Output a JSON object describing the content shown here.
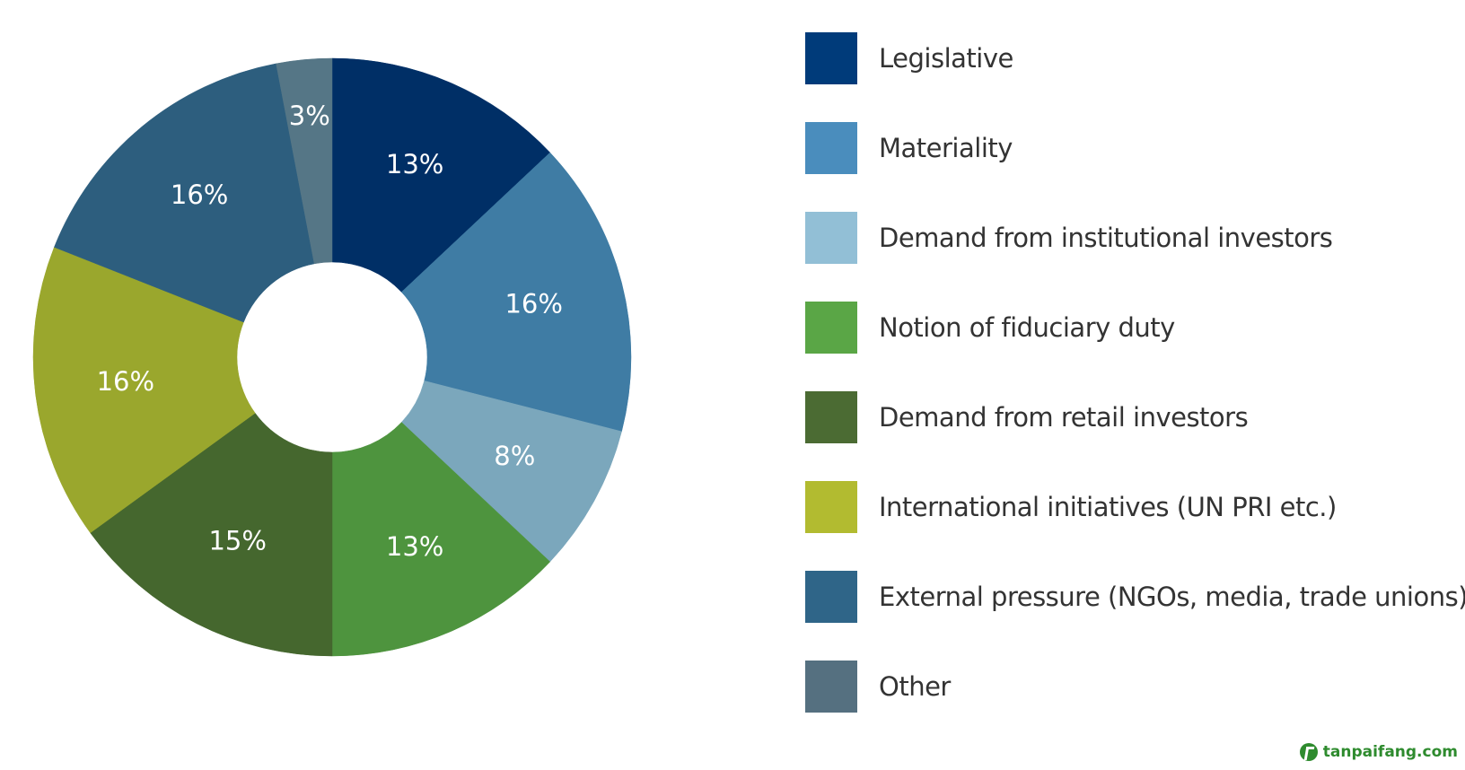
{
  "chart_data": {
    "type": "pie",
    "title": "",
    "categories": [
      "Legislative",
      "Materiality",
      "Demand from institutional investors",
      "Notion of fiduciary duty",
      "Demand from retail investors",
      "International initiatives (UN PRI etc.)",
      "External pressure (NGOs, media, trade unions)",
      "Other"
    ],
    "values": [
      13,
      16,
      8,
      13,
      15,
      16,
      16,
      3
    ],
    "value_labels": [
      "13%",
      "16%",
      "8%",
      "13%",
      "15%",
      "16%",
      "16%",
      "3%"
    ],
    "colors": [
      "#002f66",
      "#3f7ca4",
      "#7ba7bc",
      "#4e943e",
      "#45672e",
      "#9aa72d",
      "#2d5e7e",
      "#557686"
    ],
    "legend_colors": [
      "#003b7a",
      "#4a8dbd",
      "#92bfd6",
      "#5aa646",
      "#4b6b33",
      "#b2bb30",
      "#2f6588",
      "#557080"
    ],
    "donut": true,
    "legend_position": "right"
  },
  "watermark": {
    "text": "tanpaifang.com",
    "color": "#2e8b2e"
  }
}
